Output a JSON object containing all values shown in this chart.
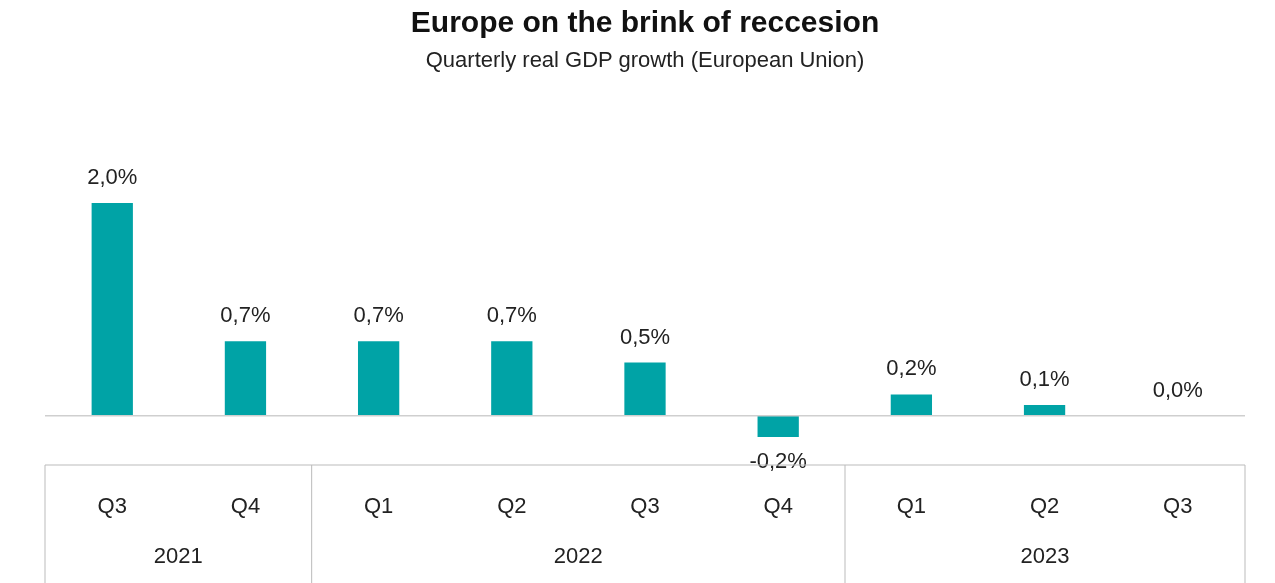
{
  "chart_data": {
    "type": "bar",
    "title": "Europe on the brink of reccesion",
    "subtitle": "Quarterly real GDP growth (European Union)",
    "categories": [
      "Q3",
      "Q4",
      "Q1",
      "Q2",
      "Q3",
      "Q4",
      "Q1",
      "Q2",
      "Q3"
    ],
    "values": [
      2.0,
      0.7,
      0.7,
      0.7,
      0.5,
      -0.2,
      0.2,
      0.1,
      0.0
    ],
    "value_labels": [
      "2,0%",
      "0,7%",
      "0,7%",
      "0,7%",
      "0,5%",
      "-0,2%",
      "0,2%",
      "0,1%",
      "0,0%"
    ],
    "color": "#00a3a6",
    "annotations": [
      "2021",
      "2022",
      "2023"
    ]
  }
}
